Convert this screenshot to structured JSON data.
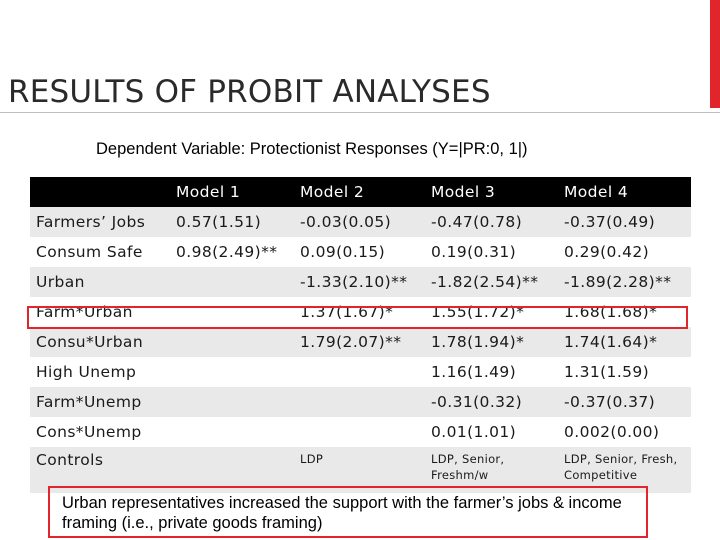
{
  "slide": {
    "title": "RESULTS OF PROBIT ANALYSES",
    "subtitle": "Dependent Variable: Protectionist Responses (Y=|PR:0, 1|)",
    "accent_color": "#e0262b"
  },
  "table": {
    "headers": [
      "",
      "Model 1",
      "Model 2",
      "Model 3",
      "Model 4"
    ],
    "rows": [
      [
        "Farmers’ Jobs",
        "0.57(1.51)",
        "-0.03(0.05)",
        "-0.47(0.78)",
        "-0.37(0.49)"
      ],
      [
        "Consum Safe",
        "0.98(2.49)**",
        "0.09(0.15)",
        "0.19(0.31)",
        "0.29(0.42)"
      ],
      [
        "Urban",
        "",
        "-1.33(2.10)**",
        "-1.82(2.54)**",
        "-1.89(2.28)**"
      ],
      [
        "Farm*Urban",
        "",
        "1.37(1.67)*",
        "1.55(1.72)*",
        "1.68(1.68)*"
      ],
      [
        "Consu*Urban",
        "",
        "1.79(2.07)**",
        "1.78(1.94)*",
        "1.74(1.64)*"
      ],
      [
        "High Unemp",
        "",
        "",
        "1.16(1.49)",
        "1.31(1.59)"
      ],
      [
        "Farm*Unemp",
        "",
        "",
        "-0.31(0.32)",
        "-0.37(0.37)"
      ],
      [
        "Cons*Unemp",
        "",
        "",
        "0.01(1.01)",
        "0.002(0.00)"
      ],
      [
        "Controls",
        "",
        "LDP",
        "LDP, Senior, Freshm/w",
        "LDP, Senior, Fresh, Competitive"
      ]
    ]
  },
  "note": "Urban representatives increased the support with the farmer’s jobs & income framing (i.e., private goods framing)"
}
